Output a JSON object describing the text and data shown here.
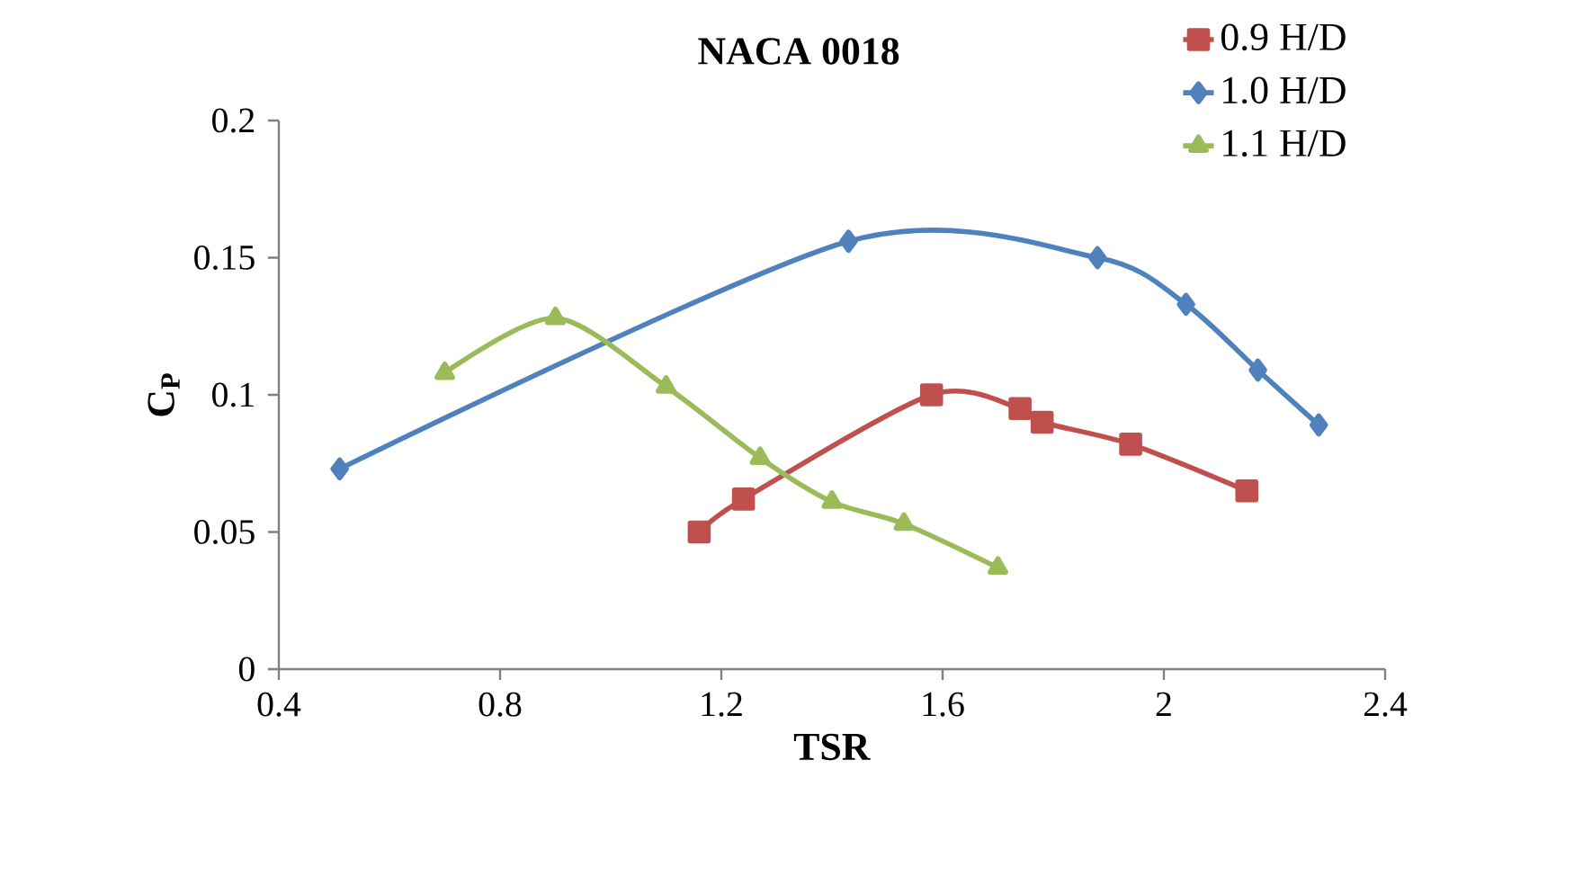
{
  "chart_data": {
    "type": "line",
    "title": "**NACA 0018**",
    "xlabel": "**TSR**",
    "ylabel": "**C$_{P}$**",
    "xlim": [
      0.4,
      2.4
    ],
    "xticks": [
      0.4,
      0.8,
      1.2,
      1.6,
      2,
      2.4
    ],
    "ylim": [
      0,
      0.2
    ],
    "yticks": [
      0,
      0.05,
      0.1,
      0.15,
      0.2
    ],
    "grid": false,
    "legend": "top right",
    "line_style": "solid",
    "series": [
      {
        "name": "0.9 H/D",
        "color": "#c0504d",
        "marker": "square",
        "x": [
          1.16,
          1.24,
          1.58,
          1.74,
          1.78,
          1.94,
          2.15
        ],
        "values": [
          0.05,
          0.062,
          0.1,
          0.095,
          0.09,
          0.082,
          0.065
        ]
      },
      {
        "name": "1.0 H/D",
        "color": "#4f81bd",
        "marker": "diamond",
        "x": [
          0.51,
          1.43,
          1.88,
          2.04,
          2.17,
          2.28
        ],
        "values": [
          0.073,
          0.156,
          0.15,
          0.133,
          0.109,
          0.089
        ]
      },
      {
        "name": "1.1 H/D",
        "color": "#9bbb59",
        "marker": "triangle",
        "x": [
          0.7,
          0.9,
          1.1,
          1.27,
          1.4,
          1.53,
          1.7
        ],
        "values": [
          0.108,
          0.128,
          0.103,
          0.077,
          0.061,
          0.053,
          0.037
        ]
      }
    ]
  }
}
